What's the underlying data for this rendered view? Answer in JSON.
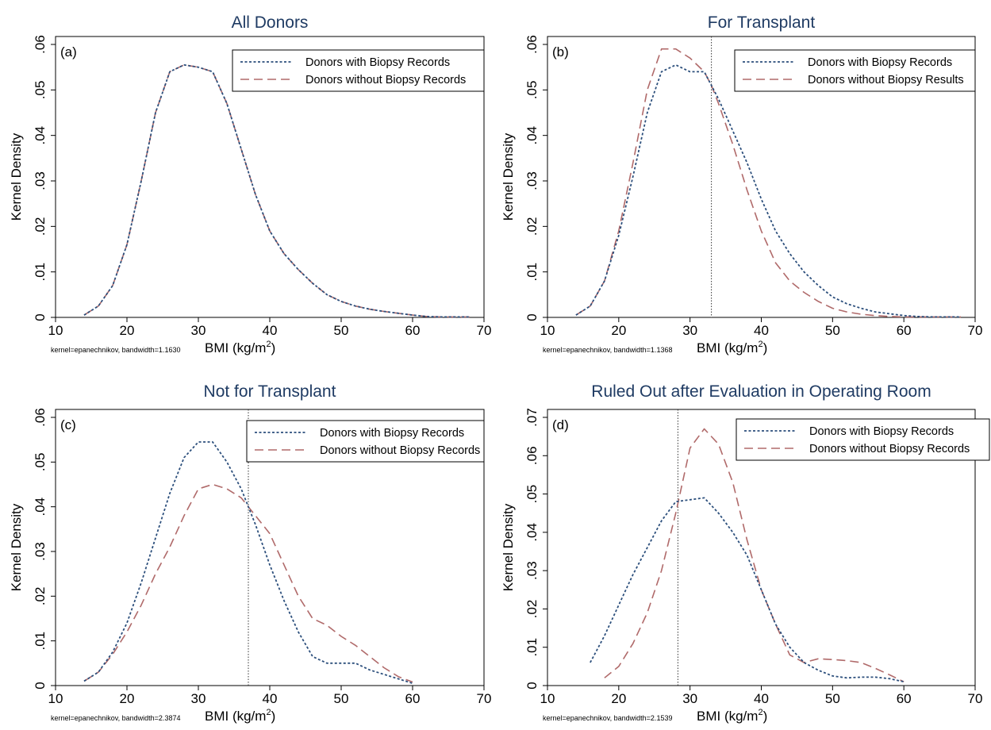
{
  "colors": {
    "series_with": "#2c4f7c",
    "series_without": "#b06a6a",
    "title": "#1f3b63",
    "frame": "#000000",
    "refline": "#333333"
  },
  "chart_data": [
    {
      "type": "line",
      "panel": "(a)",
      "title": "All Donors",
      "ylabel": "Kernel Density",
      "xlabel": "BMI (kg/m",
      "xlabel_sup": "2",
      "xlabel_close": ")",
      "note": "kernel=epanechnikov, bandwidth=1.1630",
      "xlim": [
        10,
        70
      ],
      "ylim": [
        0,
        0.06
      ],
      "xticks": [
        10,
        20,
        30,
        40,
        50,
        60,
        70
      ],
      "yticks": [
        0,
        0.01,
        0.02,
        0.03,
        0.04,
        0.05,
        0.06
      ],
      "ytick_labels": [
        "0",
        ".01",
        ".02",
        ".03",
        ".04",
        ".05",
        ".06"
      ],
      "refline_x": null,
      "legend_position": "top-right",
      "series": [
        {
          "name": "Donors with Biopsy Records",
          "style": "dotted",
          "x": [
            14,
            16,
            18,
            20,
            22,
            24,
            26,
            28,
            30,
            32,
            34,
            36,
            38,
            40,
            42,
            44,
            46,
            48,
            50,
            52,
            54,
            56,
            58,
            60,
            62,
            64,
            66,
            68
          ],
          "y": [
            0.0005,
            0.0025,
            0.007,
            0.016,
            0.03,
            0.045,
            0.054,
            0.0555,
            0.055,
            0.054,
            0.047,
            0.037,
            0.027,
            0.019,
            0.014,
            0.0105,
            0.0075,
            0.005,
            0.0035,
            0.0025,
            0.0018,
            0.0013,
            0.0009,
            0.0005,
            0.0002,
            0.0001,
            0.0001,
            0.0001
          ]
        },
        {
          "name": "Donors without Biopsy Records",
          "style": "dashed",
          "x": [
            14,
            16,
            18,
            20,
            22,
            24,
            26,
            28,
            30,
            32,
            34,
            36,
            38,
            40,
            42,
            44,
            46,
            48,
            50,
            52,
            54,
            56,
            58,
            60,
            62,
            64,
            66,
            68
          ],
          "y": [
            0.0005,
            0.0025,
            0.007,
            0.016,
            0.03,
            0.045,
            0.054,
            0.0555,
            0.055,
            0.054,
            0.047,
            0.037,
            0.027,
            0.019,
            0.014,
            0.0105,
            0.0075,
            0.005,
            0.0035,
            0.0025,
            0.0018,
            0.0013,
            0.0009,
            0.0005,
            0.0002,
            0.0001,
            0.0001,
            0.0001
          ]
        }
      ]
    },
    {
      "type": "line",
      "panel": "(b)",
      "title": "For Transplant",
      "ylabel": "Kernel Density",
      "xlabel": "BMI (kg/m",
      "xlabel_sup": "2",
      "xlabel_close": ")",
      "note": "kernel=epanechnikov, bandwidth=1.1368",
      "xlim": [
        10,
        70
      ],
      "ylim": [
        0,
        0.06
      ],
      "xticks": [
        10,
        20,
        30,
        40,
        50,
        60,
        70
      ],
      "yticks": [
        0,
        0.01,
        0.02,
        0.03,
        0.04,
        0.05,
        0.06
      ],
      "ytick_labels": [
        "0",
        ".01",
        ".02",
        ".03",
        ".04",
        ".05",
        ".06"
      ],
      "refline_x": 33,
      "legend_position": "top-right",
      "series": [
        {
          "name": "Donors with Biopsy Records",
          "style": "dotted",
          "x": [
            14,
            16,
            18,
            20,
            22,
            24,
            26,
            28,
            30,
            32,
            33,
            34,
            36,
            38,
            40,
            42,
            44,
            46,
            48,
            50,
            52,
            54,
            56,
            58,
            60,
            62,
            64,
            66,
            68
          ],
          "y": [
            0.0005,
            0.0025,
            0.008,
            0.018,
            0.031,
            0.045,
            0.054,
            0.0555,
            0.054,
            0.054,
            0.051,
            0.048,
            0.041,
            0.034,
            0.026,
            0.019,
            0.014,
            0.01,
            0.007,
            0.0045,
            0.003,
            0.002,
            0.0012,
            0.0008,
            0.0004,
            0.0002,
            0.0001,
            0.0001,
            0.0001
          ]
        },
        {
          "name": "Donors without Biopsy Results",
          "style": "dashed",
          "x": [
            14,
            16,
            18,
            20,
            22,
            24,
            26,
            28,
            30,
            32,
            33,
            34,
            36,
            38,
            40,
            42,
            44,
            46,
            48,
            50,
            52,
            54,
            56,
            58,
            60,
            62,
            64,
            66,
            68
          ],
          "y": [
            0.0005,
            0.0025,
            0.008,
            0.019,
            0.034,
            0.05,
            0.059,
            0.059,
            0.057,
            0.054,
            0.051,
            0.047,
            0.038,
            0.028,
            0.019,
            0.012,
            0.008,
            0.0055,
            0.0035,
            0.002,
            0.0012,
            0.0007,
            0.0004,
            0.0002,
            0.0001,
            0.0001,
            0.0001,
            0.0001,
            0.0001
          ]
        }
      ]
    },
    {
      "type": "line",
      "panel": "(c)",
      "title": "Not for Transplant",
      "ylabel": "Kernel Density",
      "xlabel": "BMI (kg/m",
      "xlabel_sup": "2",
      "xlabel_close": ")",
      "note": "kernel=epanechnikov, bandwidth=2.3874",
      "xlim": [
        10,
        70
      ],
      "ylim": [
        0,
        0.06
      ],
      "xticks": [
        10,
        20,
        30,
        40,
        50,
        60,
        70
      ],
      "yticks": [
        0,
        0.01,
        0.02,
        0.03,
        0.04,
        0.05,
        0.06
      ],
      "ytick_labels": [
        "0",
        ".01",
        ".02",
        ".03",
        ".04",
        ".05",
        ".06"
      ],
      "refline_x": 37,
      "legend_position": "top-right",
      "series": [
        {
          "name": "Donors with Biopsy Records",
          "style": "dotted",
          "x": [
            14,
            16,
            18,
            20,
            22,
            24,
            26,
            28,
            30,
            32,
            34,
            36,
            37,
            38,
            40,
            42,
            44,
            46,
            48,
            50,
            52,
            54,
            56,
            58,
            60
          ],
          "y": [
            0.001,
            0.003,
            0.0075,
            0.014,
            0.023,
            0.033,
            0.043,
            0.051,
            0.0545,
            0.0545,
            0.05,
            0.044,
            0.04,
            0.036,
            0.027,
            0.019,
            0.012,
            0.0065,
            0.005,
            0.005,
            0.005,
            0.0035,
            0.0025,
            0.0015,
            0.0005
          ]
        },
        {
          "name": "Donors without Biopsy Records",
          "style": "dashed",
          "x": [
            14,
            16,
            18,
            20,
            22,
            24,
            26,
            28,
            30,
            32,
            34,
            36,
            37,
            38,
            40,
            42,
            44,
            46,
            48,
            50,
            52,
            54,
            56,
            58,
            60
          ],
          "y": [
            0.001,
            0.003,
            0.007,
            0.012,
            0.018,
            0.025,
            0.031,
            0.038,
            0.044,
            0.045,
            0.044,
            0.042,
            0.04,
            0.038,
            0.034,
            0.027,
            0.02,
            0.015,
            0.0135,
            0.011,
            0.009,
            0.0065,
            0.004,
            0.002,
            0.0008
          ]
        }
      ]
    },
    {
      "type": "line",
      "panel": "(d)",
      "title": "Ruled Out after Evaluation in Operating Room",
      "ylabel": "Kernel Density",
      "xlabel": "BMI (kg/m",
      "xlabel_sup": "2",
      "xlabel_close": ")",
      "note": "kernel=epanechnikov, bandwidth=2.1539",
      "xlim": [
        10,
        70
      ],
      "ylim": [
        0,
        0.07
      ],
      "xticks": [
        10,
        20,
        30,
        40,
        50,
        60,
        70
      ],
      "yticks": [
        0,
        0.01,
        0.02,
        0.03,
        0.04,
        0.05,
        0.06,
        0.07
      ],
      "ytick_labels": [
        "0",
        ".01",
        ".02",
        ".03",
        ".04",
        ".05",
        ".06",
        ".07"
      ],
      "refline_x": 28.3,
      "legend_position": "top-right",
      "series": [
        {
          "name": "Donors with Biopsy Records",
          "style": "dotted",
          "x": [
            16,
            18,
            20,
            22,
            24,
            26,
            28,
            30,
            32,
            34,
            36,
            38,
            40,
            42,
            44,
            46,
            48,
            50,
            52,
            54,
            56,
            58,
            60
          ],
          "y": [
            0.006,
            0.013,
            0.021,
            0.029,
            0.036,
            0.043,
            0.048,
            0.0485,
            0.049,
            0.045,
            0.04,
            0.034,
            0.025,
            0.016,
            0.01,
            0.006,
            0.004,
            0.0025,
            0.002,
            0.0022,
            0.0022,
            0.0018,
            0.001
          ]
        },
        {
          "name": "Donors without Biopsy Records",
          "style": "dashed",
          "x": [
            18,
            20,
            22,
            24,
            26,
            28,
            30,
            32,
            34,
            36,
            38,
            40,
            42,
            44,
            46,
            48,
            50,
            52,
            54,
            56,
            58,
            60
          ],
          "y": [
            0.002,
            0.005,
            0.011,
            0.019,
            0.03,
            0.045,
            0.062,
            0.067,
            0.063,
            0.053,
            0.038,
            0.025,
            0.016,
            0.008,
            0.006,
            0.007,
            0.0068,
            0.0065,
            0.006,
            0.0045,
            0.0028,
            0.001
          ]
        }
      ]
    }
  ]
}
